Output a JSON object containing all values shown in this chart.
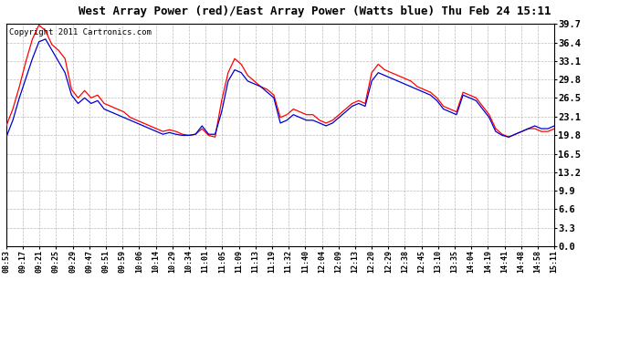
{
  "title": "West Array Power (red)/East Array Power (Watts blue) Thu Feb 24 15:11",
  "copyright": "Copyright 2011 Cartronics.com",
  "background_color": "#ffffff",
  "plot_bg_color": "#ffffff",
  "grid_color": "#aaaaaa",
  "red_color": "#ff0000",
  "blue_color": "#0000cc",
  "yticks": [
    0.0,
    3.3,
    6.6,
    9.9,
    13.2,
    16.5,
    19.8,
    23.1,
    26.5,
    29.8,
    33.1,
    36.4,
    39.7
  ],
  "ylim": [
    0.0,
    39.7
  ],
  "xtick_labels": [
    "08:53",
    "09:17",
    "09:21",
    "09:25",
    "09:29",
    "09:47",
    "09:51",
    "09:59",
    "10:06",
    "10:14",
    "10:29",
    "10:34",
    "11:01",
    "11:05",
    "11:09",
    "11:13",
    "11:19",
    "11:32",
    "11:40",
    "12:04",
    "12:09",
    "12:13",
    "12:20",
    "12:29",
    "12:38",
    "12:45",
    "13:10",
    "13:35",
    "14:04",
    "14:19",
    "14:41",
    "14:48",
    "14:58",
    "15:11"
  ],
  "red_waypoints_x": [
    0,
    1,
    2,
    3,
    4,
    5,
    6,
    7,
    8,
    9,
    10,
    11,
    12,
    13,
    14,
    15,
    16,
    17,
    18,
    19,
    20,
    21,
    22,
    23,
    24,
    25,
    26,
    27,
    28,
    29,
    30,
    31,
    32,
    33,
    34,
    35,
    36,
    37,
    38,
    39,
    40,
    41,
    42,
    43,
    44,
    45,
    46,
    47,
    48,
    49,
    50,
    51,
    52,
    53,
    54,
    55,
    56,
    57,
    58,
    59,
    60,
    61,
    62,
    63,
    64,
    65,
    66,
    67,
    68,
    69,
    70,
    71,
    72,
    73,
    74,
    75,
    76,
    77,
    78,
    79,
    80,
    81,
    82,
    83,
    84
  ],
  "red_waypoints_y": [
    21.5,
    24.5,
    28.5,
    33.0,
    37.0,
    39.5,
    38.5,
    36.0,
    35.0,
    33.5,
    28.0,
    26.5,
    27.8,
    26.5,
    27.0,
    25.5,
    25.0,
    24.5,
    24.0,
    23.0,
    22.5,
    22.0,
    21.5,
    21.0,
    20.5,
    20.8,
    20.5,
    20.0,
    19.8,
    20.0,
    21.0,
    19.8,
    19.5,
    26.0,
    31.0,
    33.5,
    32.5,
    30.5,
    29.5,
    28.5,
    28.0,
    27.0,
    23.0,
    23.5,
    24.5,
    24.0,
    23.5,
    23.5,
    22.5,
    22.0,
    22.5,
    23.5,
    24.5,
    25.5,
    26.0,
    25.5,
    31.0,
    32.5,
    31.5,
    31.0,
    30.5,
    30.0,
    29.5,
    28.5,
    28.0,
    27.5,
    26.5,
    25.0,
    24.5,
    24.0,
    27.5,
    27.0,
    26.5,
    25.0,
    23.5,
    21.0,
    20.0,
    19.5,
    20.0,
    20.5,
    21.0,
    21.0,
    20.5,
    20.5,
    21.0
  ],
  "blue_waypoints_y": [
    19.5,
    22.5,
    26.5,
    30.0,
    33.5,
    36.5,
    37.0,
    35.0,
    33.0,
    31.0,
    27.0,
    25.5,
    26.5,
    25.5,
    26.0,
    24.5,
    24.0,
    23.5,
    23.0,
    22.5,
    22.0,
    21.5,
    21.0,
    20.5,
    20.0,
    20.3,
    20.0,
    19.8,
    19.8,
    20.0,
    21.5,
    20.0,
    20.0,
    24.0,
    29.5,
    31.5,
    31.0,
    29.5,
    29.0,
    28.5,
    27.5,
    26.5,
    22.0,
    22.5,
    23.5,
    23.0,
    22.5,
    22.5,
    22.0,
    21.5,
    22.0,
    23.0,
    24.0,
    25.0,
    25.5,
    25.0,
    29.5,
    31.0,
    30.5,
    30.0,
    29.5,
    29.0,
    28.5,
    28.0,
    27.5,
    27.0,
    26.0,
    24.5,
    24.0,
    23.5,
    27.0,
    26.5,
    26.0,
    24.5,
    23.0,
    20.5,
    19.8,
    19.5,
    20.0,
    20.5,
    21.0,
    21.5,
    21.0,
    21.0,
    21.5
  ],
  "title_fontsize": 9,
  "copyright_fontsize": 6.5,
  "ytick_fontsize": 7.5,
  "xtick_fontsize": 6
}
